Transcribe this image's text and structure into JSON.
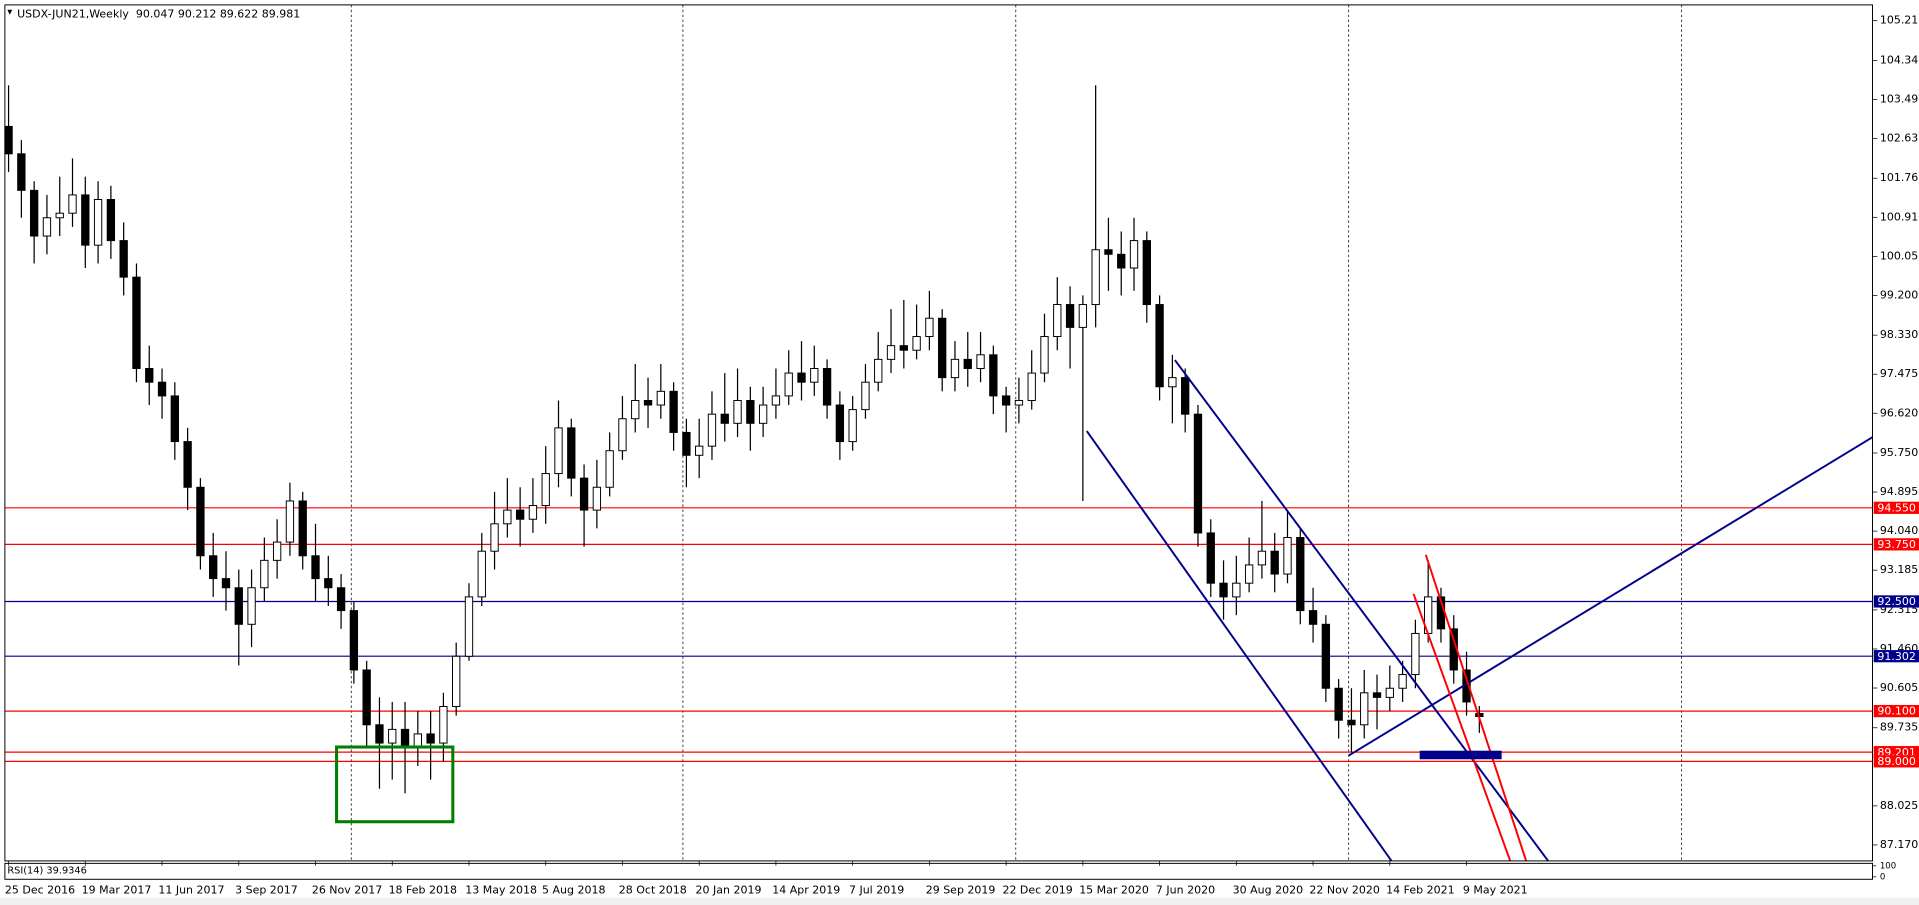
{
  "chart_data": {
    "type": "candlestick",
    "title": "USDX-JUN21,Weekly  90.047 90.212 89.622 89.981",
    "categories": [
      "25 Dec 2016",
      null,
      null,
      null,
      null,
      null,
      "19 Mar 2017",
      null,
      null,
      null,
      null,
      null,
      "11 Jun 2017",
      null,
      null,
      null,
      null,
      null,
      "3 Sep 2017",
      null,
      null,
      null,
      null,
      null,
      "26 Nov 2017",
      null,
      null,
      null,
      null,
      null,
      "18 Feb 2018",
      null,
      null,
      null,
      null,
      null,
      "13 May 2018",
      null,
      null,
      null,
      null,
      null,
      "5 Aug 2018",
      null,
      null,
      null,
      null,
      null,
      "28 Oct 2018",
      null,
      null,
      null,
      null,
      null,
      "20 Jan 2019",
      null,
      null,
      null,
      null,
      null,
      "14 Apr 2019",
      null,
      null,
      null,
      null,
      null,
      "7 Jul 2019",
      null,
      null,
      null,
      null,
      null,
      "29 Sep 2019",
      null,
      null,
      null,
      null,
      null,
      "22 Dec 2019",
      null,
      null,
      null,
      null,
      null,
      "15 Mar 2020",
      null,
      null,
      null,
      null,
      null,
      "7 Jun 2020",
      null,
      null,
      null,
      null,
      null,
      "30 Aug 2020",
      null,
      null,
      null,
      null,
      null,
      "22 Nov 2020",
      null,
      null,
      null,
      null,
      null,
      "14 Feb 2021",
      null,
      null,
      null,
      null,
      null,
      "9 May 2021",
      null
    ],
    "open": [
      102.9,
      102.3,
      101.5,
      100.5,
      100.9,
      101.0,
      101.4,
      100.3,
      101.3,
      100.4,
      99.6,
      97.6,
      97.3,
      97.0,
      96.0,
      95.0,
      93.5,
      93.0,
      92.8,
      92.0,
      92.8,
      93.4,
      93.8,
      94.7,
      93.5,
      93.0,
      92.8,
      92.3,
      91.0,
      89.8,
      89.4,
      89.7,
      89.3,
      89.6,
      89.4,
      90.2,
      91.3,
      92.6,
      93.6,
      94.2,
      94.5,
      94.3,
      94.6,
      95.3,
      96.3,
      95.2,
      94.5,
      95.0,
      95.8,
      96.5,
      96.9,
      96.8,
      97.1,
      96.2,
      95.7,
      95.9,
      96.6,
      96.4,
      96.9,
      96.4,
      96.8,
      97.0,
      97.5,
      97.3,
      97.6,
      96.8,
      96.0,
      96.7,
      97.3,
      97.8,
      98.1,
      98.0,
      98.3,
      98.7,
      97.4,
      97.8,
      97.6,
      97.9,
      97.0,
      96.8,
      96.9,
      97.5,
      98.3,
      99.0,
      98.5,
      99.0,
      100.2,
      100.1,
      99.8,
      100.4,
      99.0,
      97.2,
      97.4,
      96.6,
      94.0,
      92.9,
      92.6,
      92.9,
      93.3,
      93.6,
      93.1,
      93.9,
      92.3,
      92.0,
      90.6,
      89.9,
      89.8,
      90.5,
      90.4,
      90.6,
      90.9,
      91.8,
      92.6,
      91.9,
      91.0,
      90.047
    ],
    "high": [
      103.8,
      102.6,
      101.7,
      101.4,
      101.8,
      102.2,
      101.8,
      101.7,
      101.6,
      100.8,
      99.9,
      98.1,
      97.6,
      97.3,
      96.3,
      95.2,
      94.0,
      93.6,
      93.2,
      93.2,
      93.9,
      94.3,
      95.1,
      94.9,
      94.2,
      93.5,
      93.1,
      92.5,
      91.2,
      90.4,
      90.3,
      90.3,
      90.1,
      90.1,
      90.5,
      91.6,
      92.9,
      94.0,
      94.9,
      95.2,
      95.0,
      95.2,
      95.9,
      96.9,
      96.5,
      95.5,
      95.6,
      96.2,
      97.0,
      97.7,
      97.4,
      97.7,
      97.3,
      96.5,
      96.5,
      97.1,
      97.5,
      97.6,
      97.2,
      97.2,
      97.6,
      98.0,
      98.2,
      98.1,
      97.8,
      97.1,
      97.0,
      97.7,
      98.4,
      98.9,
      99.1,
      99.0,
      99.3,
      98.9,
      98.2,
      98.4,
      98.4,
      98.1,
      97.2,
      97.4,
      98.0,
      98.8,
      99.6,
      99.4,
      99.2,
      103.8,
      100.9,
      100.6,
      100.9,
      100.6,
      99.2,
      97.9,
      97.6,
      96.8,
      94.3,
      93.4,
      93.5,
      93.9,
      94.7,
      94.0,
      94.5,
      94.1,
      92.8,
      92.2,
      90.8,
      90.6,
      91.0,
      90.9,
      91.1,
      91.2,
      92.1,
      93.4,
      92.8,
      92.2,
      91.4,
      90.212
    ],
    "low": [
      101.9,
      100.9,
      99.9,
      100.1,
      100.5,
      100.7,
      99.8,
      99.9,
      100.0,
      99.2,
      97.3,
      96.8,
      96.5,
      95.6,
      94.5,
      93.2,
      92.6,
      92.3,
      91.1,
      91.5,
      92.5,
      93.0,
      93.5,
      93.2,
      92.5,
      92.4,
      91.9,
      90.7,
      89.3,
      88.4,
      88.6,
      88.3,
      88.9,
      88.6,
      89.0,
      90.0,
      91.2,
      92.4,
      93.2,
      93.9,
      93.7,
      94.0,
      94.2,
      95.0,
      94.8,
      93.7,
      94.1,
      94.8,
      95.6,
      96.2,
      96.3,
      96.5,
      95.8,
      95.0,
      95.2,
      95.6,
      96.0,
      96.1,
      95.8,
      96.1,
      96.5,
      96.8,
      96.9,
      97.0,
      96.5,
      95.6,
      95.8,
      96.5,
      97.1,
      97.5,
      97.6,
      97.8,
      98.0,
      97.1,
      97.1,
      97.2,
      97.3,
      96.6,
      96.2,
      96.4,
      96.7,
      97.3,
      98.0,
      97.6,
      94.7,
      98.5,
      99.3,
      99.2,
      99.3,
      98.6,
      96.9,
      96.4,
      96.2,
      93.7,
      92.6,
      92.1,
      92.2,
      92.7,
      93.0,
      92.7,
      92.9,
      92.0,
      91.6,
      90.3,
      89.5,
      89.2,
      89.5,
      89.7,
      90.1,
      90.3,
      90.6,
      91.6,
      91.6,
      90.7,
      90.0,
      89.622
    ],
    "close": [
      102.3,
      101.5,
      100.5,
      100.9,
      101.0,
      101.4,
      100.3,
      101.3,
      100.4,
      99.6,
      97.6,
      97.3,
      97.0,
      96.0,
      95.0,
      93.5,
      93.0,
      92.8,
      92.0,
      92.8,
      93.4,
      93.8,
      94.7,
      93.5,
      93.0,
      92.8,
      92.3,
      91.0,
      89.8,
      89.4,
      89.7,
      89.3,
      89.6,
      89.4,
      90.2,
      91.3,
      92.6,
      93.6,
      94.2,
      94.5,
      94.3,
      94.6,
      95.3,
      96.3,
      95.2,
      94.5,
      95.0,
      95.8,
      96.5,
      96.9,
      96.8,
      97.1,
      96.2,
      95.7,
      95.9,
      96.6,
      96.4,
      96.9,
      96.4,
      96.8,
      97.0,
      97.5,
      97.3,
      97.6,
      96.8,
      96.0,
      96.7,
      97.3,
      97.8,
      98.1,
      98.0,
      98.3,
      98.7,
      97.4,
      97.8,
      97.6,
      97.9,
      97.0,
      96.8,
      96.9,
      97.5,
      98.3,
      99.0,
      98.5,
      99.0,
      100.2,
      100.1,
      99.8,
      100.4,
      99.0,
      97.2,
      97.4,
      96.6,
      94.0,
      92.9,
      92.6,
      92.9,
      93.3,
      93.6,
      93.1,
      93.9,
      92.3,
      92.0,
      90.6,
      89.9,
      89.8,
      90.5,
      90.4,
      90.6,
      90.9,
      91.8,
      92.6,
      91.9,
      91.0,
      90.3,
      89.981
    ],
    "ylim": [
      86.82,
      105.56
    ],
    "yticks": [
      105.215,
      104.345,
      {
        "value": 103.49,
        "label": "103.490"
      },
      102.635,
      101.765,
      {
        "value": 100.91,
        "label": "100.910"
      },
      100.055,
      {
        "value": 99.2,
        "label": "99.200"
      },
      {
        "value": 98.33,
        "label": "98.330"
      },
      97.475,
      {
        "value": 96.62,
        "label": "96.620"
      },
      {
        "value": 95.75,
        "label": "95.750"
      },
      94.895,
      {
        "value": 94.04,
        "label": "94.040"
      },
      93.185,
      92.315,
      {
        "value": 91.46,
        "label": "91.460"
      },
      90.605,
      89.735,
      88.025,
      {
        "value": 87.17,
        "label": "87.170"
      }
    ],
    "levels": [
      {
        "value": 94.55,
        "label": "94.550",
        "color": "#ff0000"
      },
      {
        "value": 93.75,
        "label": "93.750",
        "color": "#ff0000"
      },
      {
        "value": 92.5,
        "label": "92.500",
        "color": "#00008b"
      },
      {
        "value": 91.302,
        "label": "91.302",
        "color": "#00008b"
      },
      {
        "value": 90.1,
        "label": "90.100",
        "color": "#ff0000"
      },
      {
        "value": 89.201,
        "label": "89.201",
        "color": "#ff0000"
      },
      {
        "value": 89.0,
        "label": "89.000",
        "color": "#ff0000"
      }
    ],
    "rsi": {
      "title": "RSI(14) 39.9346",
      "ylim": [
        0,
        100
      ],
      "yticks": [
        100,
        0
      ]
    }
  }
}
